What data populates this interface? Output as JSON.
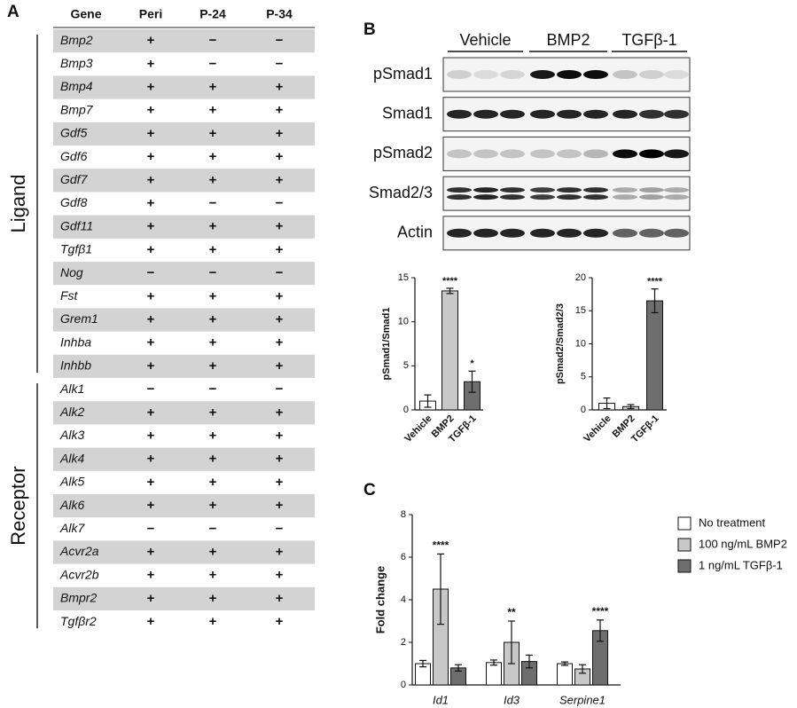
{
  "panel_labels": [
    "A",
    "B",
    "C"
  ],
  "table": {
    "header": [
      "Gene",
      "Peri",
      "P-24",
      "P-34"
    ],
    "groups": [
      {
        "label": "Ligand",
        "rows": [
          [
            "Bmp2",
            "+",
            "−",
            "−"
          ],
          [
            "Bmp3",
            "+",
            "−",
            "−"
          ],
          [
            "Bmp4",
            "+",
            "+",
            "+"
          ],
          [
            "Bmp7",
            "+",
            "+",
            "+"
          ],
          [
            "Gdf5",
            "+",
            "+",
            "+"
          ],
          [
            "Gdf6",
            "+",
            "+",
            "+"
          ],
          [
            "Gdf7",
            "+",
            "+",
            "+"
          ],
          [
            "Gdf8",
            "+",
            "−",
            "−"
          ],
          [
            "Gdf11",
            "+",
            "+",
            "+"
          ],
          [
            "Tgfβ1",
            "+",
            "+",
            "+"
          ],
          [
            "Nog",
            "−",
            "−",
            "−"
          ],
          [
            "Fst",
            "+",
            "+",
            "+"
          ],
          [
            "Grem1",
            "+",
            "+",
            "+"
          ],
          [
            "Inhba",
            "+",
            "+",
            "+"
          ],
          [
            "Inhbb",
            "+",
            "+",
            "+"
          ]
        ]
      },
      {
        "label": "Receptor",
        "rows": [
          [
            "Alk1",
            "−",
            "−",
            "−"
          ],
          [
            "Alk2",
            "+",
            "+",
            "+"
          ],
          [
            "Alk3",
            "+",
            "+",
            "+"
          ],
          [
            "Alk4",
            "+",
            "+",
            "+"
          ],
          [
            "Alk5",
            "+",
            "+",
            "+"
          ],
          [
            "Alk6",
            "+",
            "+",
            "+"
          ],
          [
            "Alk7",
            "−",
            "−",
            "−"
          ],
          [
            "Acvr2a",
            "+",
            "+",
            "+"
          ],
          [
            "Acvr2b",
            "+",
            "+",
            "+"
          ],
          [
            "Bmpr2",
            "+",
            "+",
            "+"
          ],
          [
            "Tgfβr2",
            "+",
            "+",
            "+"
          ]
        ]
      }
    ]
  },
  "blot": {
    "groups": [
      "Vehicle",
      "BMP2",
      "TGFβ-1"
    ],
    "rows": [
      "pSmad1",
      "Smad1",
      "pSmad2",
      "Smad2/3",
      "Actin"
    ]
  },
  "chart_data": [
    {
      "type": "bar",
      "y_label": "pSmad1/Smad1",
      "categories": [
        "Vehicle",
        "BMP2",
        "TGFβ-1"
      ],
      "values": [
        1.0,
        13.5,
        3.2
      ],
      "errors": [
        0.7,
        0.3,
        1.2
      ],
      "significance": [
        null,
        "****",
        "*"
      ],
      "colors": [
        "#ffffff",
        "#c8c8c8",
        "#6e6e6e"
      ],
      "ylim": [
        0,
        15
      ],
      "yticks": [
        0,
        5,
        10,
        15
      ]
    },
    {
      "type": "bar",
      "y_label": "pSmad2/Smad2/3",
      "categories": [
        "Vehicle",
        "BMP2",
        "TGFβ-1"
      ],
      "values": [
        1.0,
        0.5,
        16.5
      ],
      "errors": [
        0.8,
        0.3,
        1.8
      ],
      "significance": [
        null,
        null,
        "****"
      ],
      "colors": [
        "#ffffff",
        "#c8c8c8",
        "#6e6e6e"
      ],
      "ylim": [
        0,
        20
      ],
      "yticks": [
        0,
        5,
        10,
        15,
        20
      ]
    },
    {
      "type": "grouped_bar",
      "y_label": "Fold change",
      "categories": [
        "Id1",
        "Id3",
        "Serpine1"
      ],
      "series": [
        {
          "name": "No treatment",
          "color": "#ffffff",
          "values": [
            1.0,
            1.05,
            1.0
          ],
          "errors": [
            0.15,
            0.12,
            0.08
          ],
          "significance": [
            null,
            null,
            null
          ]
        },
        {
          "name": "100 ng/mL BMP2",
          "color": "#c8c8c8",
          "values": [
            4.5,
            2.0,
            0.75
          ],
          "errors": [
            1.65,
            1.0,
            0.2
          ],
          "significance": [
            "****",
            "**",
            null
          ]
        },
        {
          "name": "1 ng/mL TGFβ-1",
          "color": "#6e6e6e",
          "values": [
            0.8,
            1.1,
            2.55
          ],
          "errors": [
            0.15,
            0.3,
            0.5
          ],
          "significance": [
            null,
            null,
            "****"
          ]
        }
      ],
      "ylim": [
        0,
        8
      ],
      "yticks": [
        0,
        2,
        4,
        6,
        8
      ]
    }
  ]
}
